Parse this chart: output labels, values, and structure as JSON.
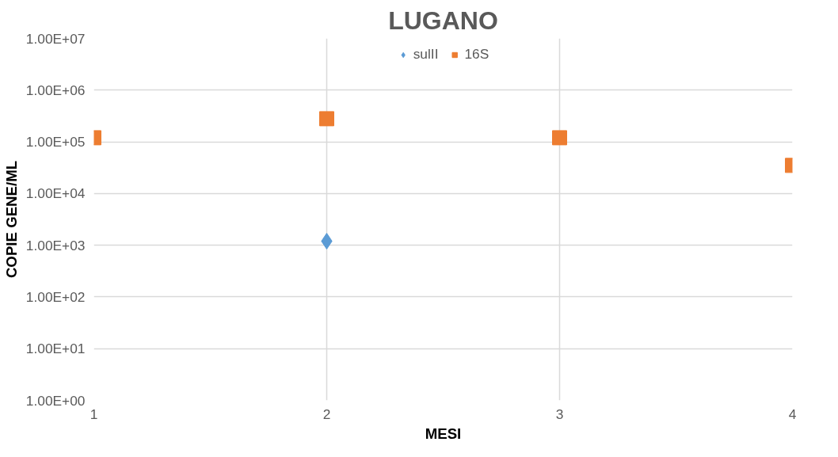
{
  "chart_data": {
    "type": "scatter",
    "title": "LUGANO",
    "xlabel": "MESI",
    "ylabel": "COPIE GENE/ML",
    "x": [
      1,
      2,
      3,
      4
    ],
    "series": [
      {
        "name": "sulII",
        "color": "#5b9bd5",
        "marker": "diamond",
        "values": [
          null,
          1200,
          null,
          null
        ]
      },
      {
        "name": "16S",
        "color": "#ed7d31",
        "marker": "square",
        "values": [
          120000,
          280000,
          120000,
          35000
        ]
      }
    ],
    "log": true,
    "xlim": [
      1,
      4
    ],
    "xticks": [
      1,
      2,
      3,
      4
    ],
    "ylim": [
      1,
      10000000
    ],
    "yticks": [
      {
        "value": 1,
        "label": "1.00E+00"
      },
      {
        "value": 10,
        "label": "1.00E+01"
      },
      {
        "value": 100,
        "label": "1.00E+02"
      },
      {
        "value": 1000,
        "label": "1.00E+03"
      },
      {
        "value": 10000,
        "label": "1.00E+04"
      },
      {
        "value": 100000,
        "label": "1.00E+05"
      },
      {
        "value": 1000000,
        "label": "1.00E+06"
      },
      {
        "value": 10000000,
        "label": "1.00E+07"
      }
    ],
    "grid": true,
    "legend": "top"
  }
}
